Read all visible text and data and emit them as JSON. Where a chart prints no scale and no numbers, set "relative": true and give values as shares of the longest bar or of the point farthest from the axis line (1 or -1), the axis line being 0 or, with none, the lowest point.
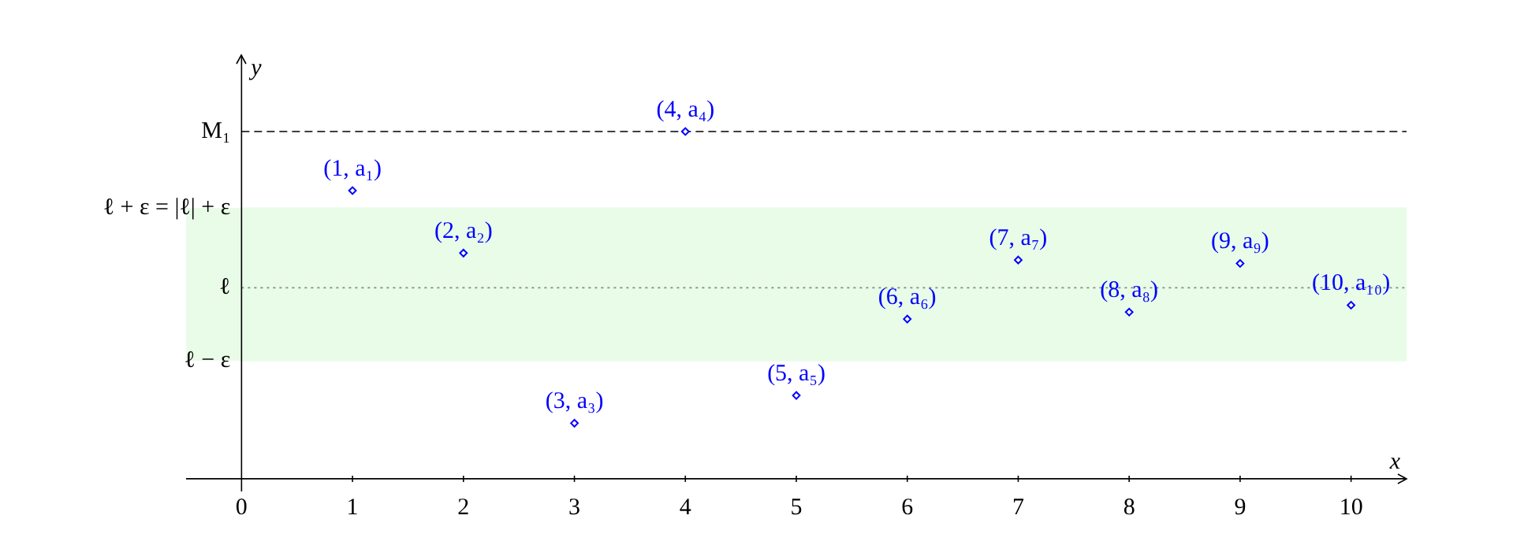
{
  "chart_data": {
    "type": "scatter",
    "xlabel": "x",
    "ylabel": "y",
    "relative": true,
    "x": [
      1,
      2,
      3,
      4,
      5,
      6,
      7,
      8,
      9,
      10
    ],
    "series": [
      {
        "color": "#0000ff",
        "values": [
          0.83,
          0.65,
          0.16,
          1,
          0.24,
          0.46,
          0.63,
          0.48,
          0.62,
          0.5
        ]
      }
    ],
    "xlim": [
      -0.5,
      10.5
    ],
    "xticks": [
      0,
      1,
      2,
      3,
      4,
      5,
      6,
      7,
      8,
      9,
      10
    ],
    "ref_lines": [
      {
        "axis": "y",
        "value": 1,
        "label": "M₁",
        "color": "#000000",
        "line_style": "dashed"
      },
      {
        "axis": "y",
        "value": 0.55,
        "label": "ℓ",
        "color": "#888888",
        "line_style": "dotted"
      },
      {
        "axis": "y",
        "value": 0.78,
        "label": "ℓ + ε = |ℓ| + ε",
        "color": "#e8fce8"
      },
      {
        "axis": "y",
        "value": 0.34,
        "label": "ℓ − ε",
        "color": "#e8fce8"
      }
    ],
    "bands": [
      {
        "axis": "y",
        "from": 0.34,
        "to": 0.78,
        "color": "#e8fce8"
      }
    ],
    "annotations": [
      {
        "text": "(1, a₁)",
        "x": 1,
        "y": 0.83
      },
      {
        "text": "(2, a₂)",
        "x": 2,
        "y": 0.65
      },
      {
        "text": "(3, a₃)",
        "x": 3,
        "y": 0.16
      },
      {
        "text": "(4, a₄)",
        "x": 4,
        "y": 1
      },
      {
        "text": "(5, a₅)",
        "x": 5,
        "y": 0.24
      },
      {
        "text": "(6, a₆)",
        "x": 6,
        "y": 0.46
      },
      {
        "text": "(7, a₇)",
        "x": 7,
        "y": 0.63
      },
      {
        "text": "(8, a₈)",
        "x": 8,
        "y": 0.48
      },
      {
        "text": "(9, a₉)",
        "x": 9,
        "y": 0.62
      },
      {
        "text": "(10, a₁₀)",
        "x": 10,
        "y": 0.5
      }
    ],
    "marker": "diamond",
    "legend": false
  }
}
